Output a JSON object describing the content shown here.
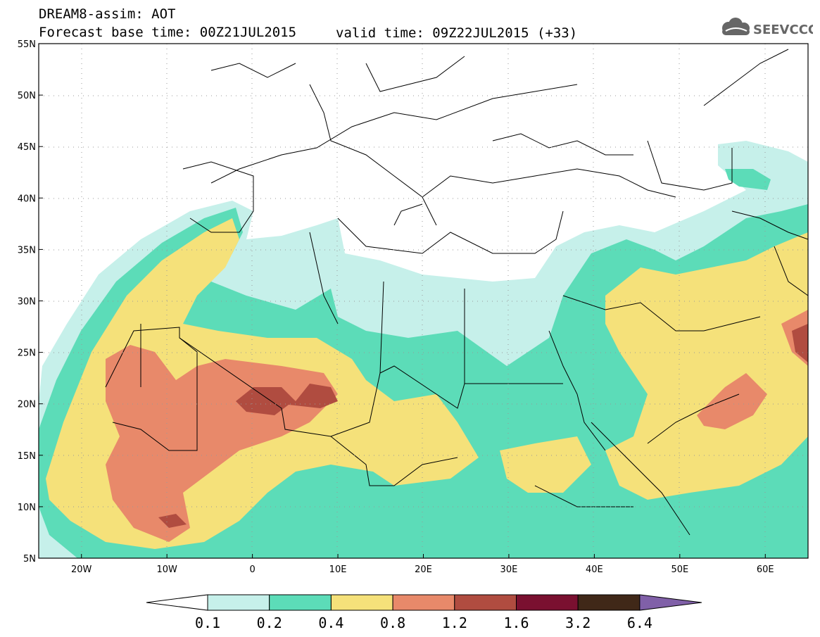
{
  "header": {
    "line1": "DREAM8-assim: AOT",
    "line2": "Forecast base time: 00Z21JUL2015",
    "valid": "valid time: 09Z22JUL2015 (+33)",
    "logo_text": "SEEVCCC"
  },
  "map": {
    "projection": "lat-lon",
    "lon_range": [
      -25,
      65
    ],
    "lat_range": [
      5,
      55
    ],
    "lat_labels": [
      "55N",
      "50N",
      "45N",
      "40N",
      "35N",
      "30N",
      "25N",
      "20N",
      "15N",
      "10N",
      "5N"
    ],
    "lon_labels": [
      "20W",
      "10W",
      "0",
      "10E",
      "20E",
      "30E",
      "40E",
      "50E",
      "60E"
    ],
    "gridlines": "dotted"
  },
  "colorbar": {
    "labels": [
      "0.1",
      "0.2",
      "0.4",
      "0.8",
      "1.2",
      "1.6",
      "3.2",
      "6.4"
    ],
    "colors": [
      "#c6f0ea",
      "#5cdcb8",
      "#f5e17a",
      "#e8896a",
      "#b04c40",
      "#7a1030",
      "#402818",
      "#8060a8"
    ],
    "below_color": "#ffffff",
    "above_color": "#8060a8"
  }
}
